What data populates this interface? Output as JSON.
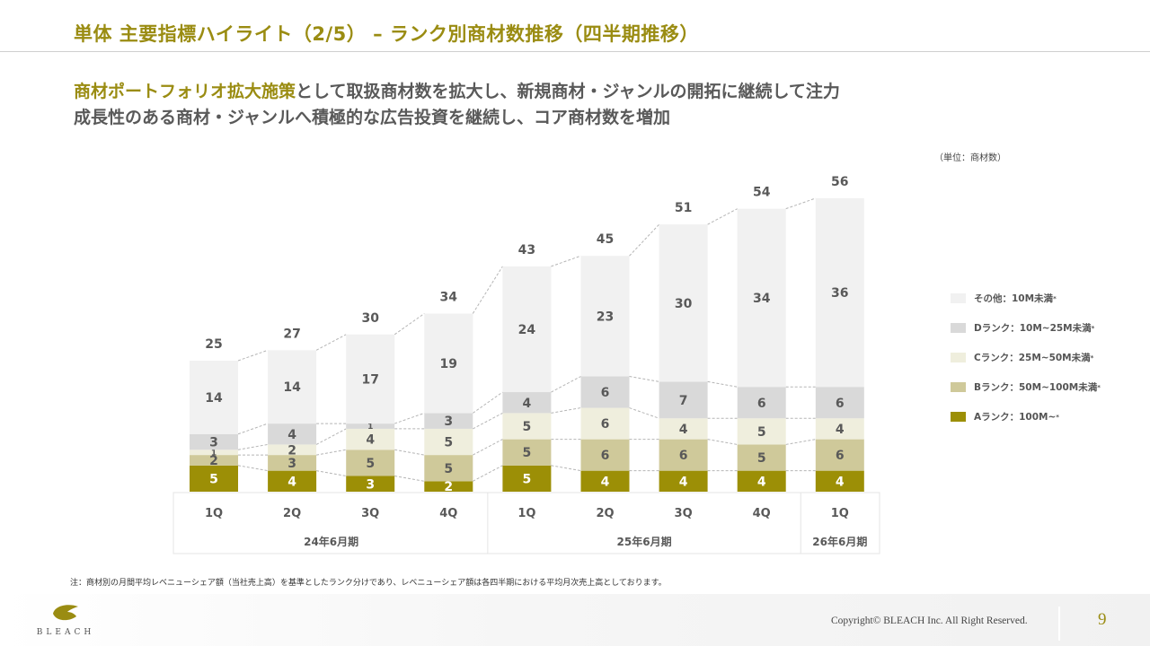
{
  "header": {
    "title": "単体 主要指標ハイライト（2/5） – ランク別商材数推移（四半期推移）"
  },
  "lead": {
    "line1_accent": "商材ポートフォリオ拡大施策",
    "line1_rest": "として取扱商材数を拡大し、新規商材・ジャンルの開拓に継続して注力",
    "line2": "成長性のある商材・ジャンルへ積極的な広告投資を継続し、コア商材数を増加"
  },
  "unit_label": "（単位：商材数）",
  "colors": {
    "brand": "#9a8c12",
    "A": "#9c8f06",
    "B": "#cfc99a",
    "C": "#efeedd",
    "D": "#d9d9d9",
    "other": "#f1f1f1"
  },
  "chart_data": {
    "type": "bar",
    "stacked": true,
    "title": "ランク別商材数推移（四半期推移）",
    "unit": "商材数",
    "categories": [
      "1Q",
      "2Q",
      "3Q",
      "4Q",
      "1Q",
      "2Q",
      "3Q",
      "4Q",
      "1Q"
    ],
    "groups": [
      {
        "label": "24年6月期",
        "count": 4
      },
      {
        "label": "25年6月期",
        "count": 4
      },
      {
        "label": "26年6月期",
        "count": 1
      }
    ],
    "series": [
      {
        "key": "A",
        "name": "Aランク：100M~",
        "values": [
          5,
          4,
          3,
          2,
          5,
          4,
          4,
          4,
          4
        ]
      },
      {
        "key": "B",
        "name": "Bランク：50M~100M未満",
        "values": [
          2,
          3,
          5,
          5,
          5,
          6,
          6,
          5,
          6
        ]
      },
      {
        "key": "C",
        "name": "Cランク：25M~50M未満",
        "values": [
          1,
          2,
          4,
          5,
          5,
          6,
          4,
          5,
          4
        ]
      },
      {
        "key": "D",
        "name": "Dランク：10M~25M未満",
        "values": [
          3,
          4,
          1,
          3,
          4,
          6,
          7,
          6,
          6
        ]
      },
      {
        "key": "other",
        "name": "その他：10M未満",
        "values": [
          14,
          14,
          17,
          19,
          24,
          23,
          30,
          34,
          36
        ]
      }
    ],
    "totals": [
      25,
      27,
      30,
      34,
      43,
      45,
      51,
      54,
      56
    ],
    "ylim": [
      0,
      60
    ],
    "grid": false,
    "legend_position": "right"
  },
  "legend": [
    {
      "key": "other",
      "label": "その他：10M未満",
      "mark": "*"
    },
    {
      "key": "D",
      "label": "Dランク：10M~25M未満",
      "mark": "*"
    },
    {
      "key": "C",
      "label": "Cランク：25M~50M未満",
      "mark": "*"
    },
    {
      "key": "B",
      "label": "Bランク：50M~100M未満",
      "mark": "*"
    },
    {
      "key": "A",
      "label": "Aランク：100M~",
      "mark": "*"
    }
  ],
  "note": "注：商材別の月間平均レベニューシェア額（当社売上高）を基準としたランク分けであり、レベニューシェア額は各四半期における平均月次売上高としております。",
  "footer": {
    "logo_text": "BLEACH",
    "copyright": "Copyright© BLEACH Inc. All Right Reserved.",
    "page_number": "9"
  }
}
